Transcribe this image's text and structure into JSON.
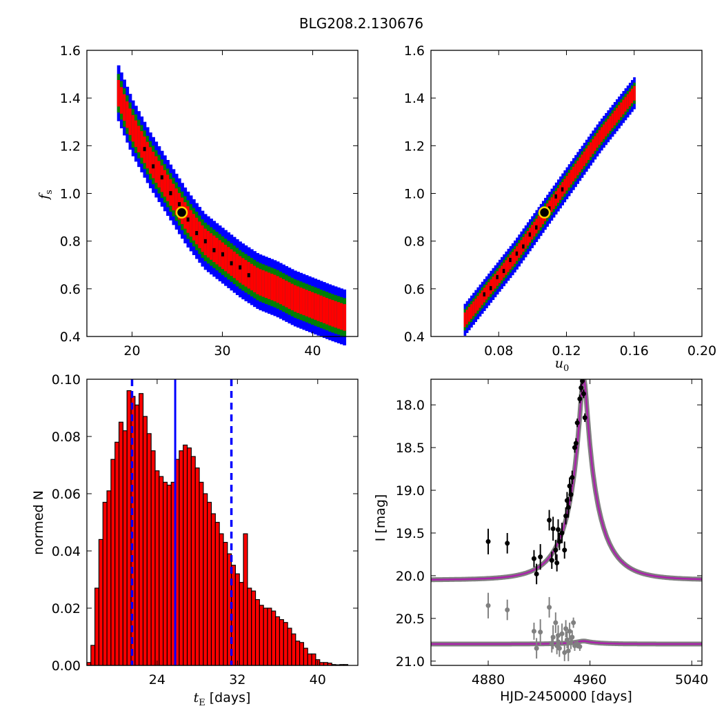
{
  "figure": {
    "title": "BLG208.2.130676"
  },
  "chart_data": [
    {
      "id": "fs-vs-tE",
      "type": "heatmap",
      "xlim": [
        15,
        45
      ],
      "ylim": [
        0.4,
        1.6
      ],
      "xticks": [
        "20",
        "30",
        "40"
      ],
      "xtick_values": [
        20,
        30,
        40
      ],
      "yticks": [
        "0.4",
        "0.6",
        "0.8",
        "1.0",
        "1.2",
        "1.4",
        "1.6"
      ],
      "ytick_values": [
        0.4,
        0.6,
        0.8,
        1.0,
        1.2,
        1.4,
        1.6
      ],
      "xlabel": "",
      "ylabel": {
        "main": "f",
        "sub": "s"
      },
      "grid": false,
      "confidence_colors": [
        "#0000ff",
        "#008000",
        "#ff0000",
        "#000000"
      ],
      "band_center": [
        [
          18.5,
          1.42
        ],
        [
          20,
          1.28
        ],
        [
          22,
          1.14
        ],
        [
          24,
          1.02
        ],
        [
          26,
          0.9
        ],
        [
          28,
          0.8
        ],
        [
          30,
          0.74
        ],
        [
          32,
          0.68
        ],
        [
          34,
          0.63
        ],
        [
          36,
          0.6
        ],
        [
          38,
          0.56
        ],
        [
          40,
          0.53
        ],
        [
          42,
          0.5
        ],
        [
          43.5,
          0.48
        ]
      ],
      "best_fit": {
        "x": 25.5,
        "y": 0.92,
        "marker_fill": "#000000",
        "marker_edge": "#ffd700"
      }
    },
    {
      "id": "fs-vs-u0",
      "type": "heatmap",
      "xlim": [
        0.04,
        0.2
      ],
      "ylim": [
        0.4,
        1.6
      ],
      "xticks": [
        "0.08",
        "0.12",
        "0.16",
        "0.20"
      ],
      "xtick_values": [
        0.08,
        0.12,
        0.16,
        0.2
      ],
      "yticks": [
        "0.4",
        "0.6",
        "0.8",
        "1.0",
        "1.2",
        "1.4",
        "1.6"
      ],
      "ytick_values": [
        0.4,
        0.6,
        0.8,
        1.0,
        1.2,
        1.4,
        1.6
      ],
      "xlabel": {
        "main": "u",
        "sub": "0"
      },
      "ylabel": "",
      "grid": false,
      "confidence_colors": [
        "#0000ff",
        "#008000",
        "#ff0000",
        "#000000"
      ],
      "band_center": [
        [
          0.06,
          0.47
        ],
        [
          0.07,
          0.56
        ],
        [
          0.08,
          0.65
        ],
        [
          0.09,
          0.74
        ],
        [
          0.1,
          0.84
        ],
        [
          0.11,
          0.94
        ],
        [
          0.12,
          1.04
        ],
        [
          0.13,
          1.14
        ],
        [
          0.14,
          1.24
        ],
        [
          0.15,
          1.33
        ],
        [
          0.16,
          1.42
        ]
      ],
      "best_fit": {
        "x": 0.107,
        "y": 0.92,
        "marker_fill": "#000000",
        "marker_edge": "#ffd700"
      }
    },
    {
      "id": "tE-histogram",
      "type": "bar",
      "xlim": [
        17,
        44
      ],
      "ylim": [
        0,
        0.1
      ],
      "xticks": [
        "24",
        "32",
        "40"
      ],
      "xtick_values": [
        24,
        32,
        40
      ],
      "yticks": [
        "0.00",
        "0.02",
        "0.04",
        "0.06",
        "0.08",
        "0.10"
      ],
      "ytick_values": [
        0,
        0.02,
        0.04,
        0.06,
        0.08,
        0.1
      ],
      "xlabel": {
        "main": "t",
        "sub": "E",
        "rest": " [days]"
      },
      "ylabel": "normed N",
      "bar_color": "#ff0000",
      "bin_start": 17.0,
      "bin_width": 0.4,
      "values": [
        0.001,
        0.007,
        0.027,
        0.044,
        0.057,
        0.061,
        0.072,
        0.078,
        0.085,
        0.082,
        0.096,
        0.094,
        0.091,
        0.095,
        0.087,
        0.081,
        0.075,
        0.068,
        0.066,
        0.064,
        0.063,
        0.064,
        0.072,
        0.075,
        0.077,
        0.076,
        0.073,
        0.069,
        0.064,
        0.06,
        0.057,
        0.053,
        0.05,
        0.046,
        0.043,
        0.039,
        0.035,
        0.032,
        0.029,
        0.046,
        0.027,
        0.026,
        0.023,
        0.021,
        0.02,
        0.02,
        0.019,
        0.017,
        0.016,
        0.015,
        0.013,
        0.011,
        0.0085,
        0.008,
        0.006,
        0.004,
        0.004,
        0.002,
        0.001,
        0.001,
        0.0008,
        0.0003,
        0.0002,
        0.0003,
        0.0003
      ],
      "median": 25.8,
      "median_color": "#0000ff",
      "percentiles": [
        21.5,
        31.4
      ],
      "percentile_color": "#0000ff"
    },
    {
      "id": "light-curve",
      "type": "scatter",
      "xlim": [
        4835,
        5048
      ],
      "ylim": [
        21.05,
        17.7
      ],
      "xticks": [
        "4880",
        "4960",
        "5040"
      ],
      "xtick_values": [
        4880,
        4960,
        5040
      ],
      "yticks": [
        "18.0",
        "18.5",
        "19.0",
        "19.5",
        "20.0",
        "20.5",
        "21.0"
      ],
      "ytick_values": [
        18.0,
        18.5,
        19.0,
        19.5,
        20.0,
        20.5,
        21.0
      ],
      "xlabel": "HJD-2450000 [days]",
      "ylabel": "I [mag]",
      "model": {
        "t0": 4955,
        "tE": 25.5,
        "u0": 0.107,
        "fs": 0.92,
        "base_mag": 20.05,
        "color": "#aa22aa",
        "band_color": "#808080"
      },
      "residual_baseline": 20.8,
      "data_points": [
        {
          "t": 4880,
          "mag": 19.6,
          "err": 0.15
        },
        {
          "t": 4895,
          "mag": 19.62,
          "err": 0.12
        },
        {
          "t": 4916,
          "mag": 19.8,
          "err": 0.1
        },
        {
          "t": 4918,
          "mag": 19.98,
          "err": 0.12
        },
        {
          "t": 4921,
          "mag": 19.78,
          "err": 0.15
        },
        {
          "t": 4928,
          "mag": 19.35,
          "err": 0.12
        },
        {
          "t": 4930,
          "mag": 19.82,
          "err": 0.1
        },
        {
          "t": 4931,
          "mag": 19.45,
          "err": 0.14
        },
        {
          "t": 4933,
          "mag": 19.7,
          "err": 0.12
        },
        {
          "t": 4934,
          "mag": 19.85,
          "err": 0.1
        },
        {
          "t": 4935,
          "mag": 19.46,
          "err": 0.12
        },
        {
          "t": 4936,
          "mag": 19.6,
          "err": 0.1
        },
        {
          "t": 4938,
          "mag": 19.5,
          "err": 0.12
        },
        {
          "t": 4940,
          "mag": 19.7,
          "err": 0.1
        },
        {
          "t": 4941,
          "mag": 19.3,
          "err": 0.1
        },
        {
          "t": 4942,
          "mag": 19.12,
          "err": 0.1
        },
        {
          "t": 4943,
          "mag": 19.2,
          "err": 0.12
        },
        {
          "t": 4944,
          "mag": 18.95,
          "err": 0.1
        },
        {
          "t": 4945,
          "mag": 19.05,
          "err": 0.08
        },
        {
          "t": 4946,
          "mag": 18.85,
          "err": 0.08
        },
        {
          "t": 4948,
          "mag": 18.5,
          "err": 0.06
        },
        {
          "t": 4949,
          "mag": 18.45,
          "err": 0.06
        },
        {
          "t": 4950,
          "mag": 18.21,
          "err": 0.05
        },
        {
          "t": 4952,
          "mag": 17.93,
          "err": 0.05
        },
        {
          "t": 4953,
          "mag": 17.8,
          "err": 0.05
        },
        {
          "t": 4954,
          "mag": 17.72,
          "err": 0.04
        },
        {
          "t": 4955,
          "mag": 17.87,
          "err": 0.05
        },
        {
          "t": 4956,
          "mag": 18.15,
          "err": 0.05
        }
      ],
      "residual_points": [
        {
          "t": 4880,
          "mag": 20.35,
          "err": 0.15
        },
        {
          "t": 4895,
          "mag": 20.4,
          "err": 0.12
        },
        {
          "t": 4916,
          "mag": 20.65,
          "err": 0.1
        },
        {
          "t": 4918,
          "mag": 20.85,
          "err": 0.12
        },
        {
          "t": 4921,
          "mag": 20.66,
          "err": 0.15
        },
        {
          "t": 4928,
          "mag": 20.37,
          "err": 0.12
        },
        {
          "t": 4930,
          "mag": 20.8,
          "err": 0.1
        },
        {
          "t": 4931,
          "mag": 20.72,
          "err": 0.14
        },
        {
          "t": 4933,
          "mag": 20.55,
          "err": 0.12
        },
        {
          "t": 4934,
          "mag": 20.82,
          "err": 0.1
        },
        {
          "t": 4935,
          "mag": 20.7,
          "err": 0.12
        },
        {
          "t": 4936,
          "mag": 20.85,
          "err": 0.1
        },
        {
          "t": 4938,
          "mag": 20.68,
          "err": 0.12
        },
        {
          "t": 4940,
          "mag": 20.9,
          "err": 0.1
        },
        {
          "t": 4941,
          "mag": 20.62,
          "err": 0.1
        },
        {
          "t": 4942,
          "mag": 20.75,
          "err": 0.1
        },
        {
          "t": 4943,
          "mag": 20.88,
          "err": 0.12
        },
        {
          "t": 4944,
          "mag": 20.65,
          "err": 0.1
        },
        {
          "t": 4945,
          "mag": 20.78,
          "err": 0.08
        },
        {
          "t": 4946,
          "mag": 20.72,
          "err": 0.08
        },
        {
          "t": 4947,
          "mag": 20.55,
          "err": 0.06
        },
        {
          "t": 4948,
          "mag": 20.82,
          "err": 0.06
        },
        {
          "t": 4950,
          "mag": 20.8,
          "err": 0.05
        },
        {
          "t": 4952,
          "mag": 20.83,
          "err": 0.05
        }
      ]
    }
  ]
}
